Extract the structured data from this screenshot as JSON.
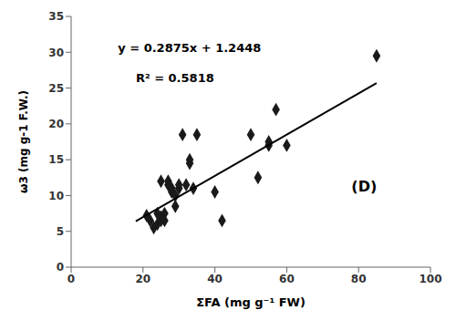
{
  "chart_data": {
    "type": "scatter",
    "xlabel": "ΣFA (mg g⁻¹ FW)",
    "ylabel": "ω3 (mg g-1 F.W.)",
    "xlim": [
      0,
      100
    ],
    "ylim": [
      0,
      35
    ],
    "xticks": [
      0,
      20,
      40,
      60,
      80,
      100
    ],
    "yticks": [
      0,
      5,
      10,
      15,
      20,
      25,
      30,
      35
    ],
    "grid": false,
    "annotations": [
      "y = 0.2875x + 1.2448",
      "R² = 0.5818",
      "(D)"
    ],
    "series": [
      {
        "type": "scatter",
        "marker": "diamond",
        "color": "#1a1a1a",
        "x": [
          21,
          22,
          23,
          24,
          24,
          25,
          25,
          25,
          26,
          26,
          27,
          27,
          28,
          28,
          29,
          29,
          30,
          30,
          31,
          32,
          33,
          33,
          34,
          35,
          40,
          42,
          50,
          52,
          55,
          55,
          57,
          60,
          85
        ],
        "values": [
          7.2,
          6.5,
          5.5,
          6.0,
          7.5,
          7.0,
          6.5,
          12.0,
          6.5,
          7.5,
          11.5,
          12.0,
          10.5,
          11.0,
          10.0,
          8.5,
          11.0,
          11.5,
          18.5,
          11.5,
          14.5,
          15.0,
          11.0,
          18.5,
          10.5,
          6.5,
          18.5,
          12.5,
          17.0,
          17.5,
          22.0,
          17.0,
          29.5
        ]
      },
      {
        "type": "line",
        "line_style": "solid",
        "color": "#000000",
        "x": [
          18,
          85
        ],
        "values": [
          6.4196,
          25.6823
        ]
      }
    ]
  }
}
